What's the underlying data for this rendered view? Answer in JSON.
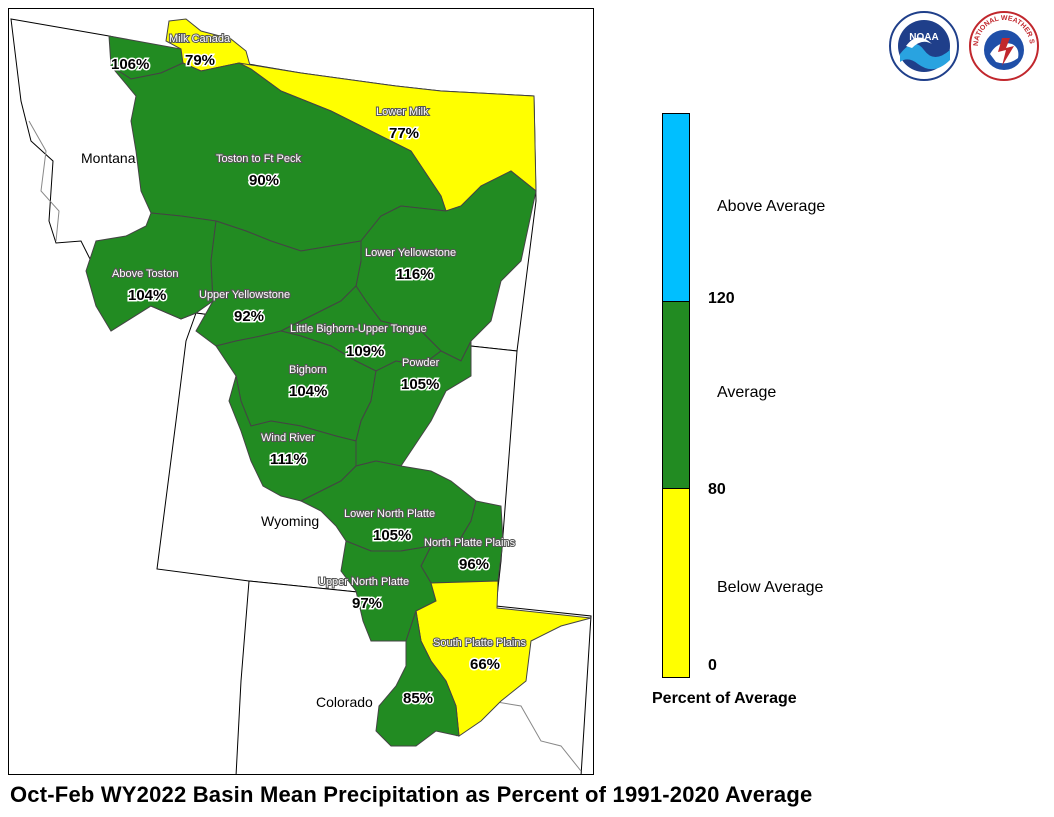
{
  "title": "Oct-Feb WY2022 Basin Mean Precipitation as Percent of 1991-2020 Average",
  "colors": {
    "below": "#ffff00",
    "average": "#228b22",
    "above": "#00bfff",
    "border": "#000000"
  },
  "states": [
    "Montana",
    "Wyoming",
    "Colorado"
  ],
  "basins": [
    {
      "name": "",
      "pct": "106%",
      "category": "average"
    },
    {
      "name": "Milk Canada",
      "pct": "79%",
      "category": "below"
    },
    {
      "name": "Lower Milk",
      "pct": "77%",
      "category": "below"
    },
    {
      "name": "Toston to Ft Peck",
      "pct": "90%",
      "category": "average"
    },
    {
      "name": "Above Toston",
      "pct": "104%",
      "category": "average"
    },
    {
      "name": "Lower Yellowstone",
      "pct": "116%",
      "category": "average"
    },
    {
      "name": "Upper Yellowstone",
      "pct": "92%",
      "category": "average"
    },
    {
      "name": "Little Bighorn-Upper Tongue",
      "pct": "109%",
      "category": "average"
    },
    {
      "name": "Bighorn",
      "pct": "104%",
      "category": "average"
    },
    {
      "name": "Powder",
      "pct": "105%",
      "category": "average"
    },
    {
      "name": "Wind River",
      "pct": "111%",
      "category": "average"
    },
    {
      "name": "Lower North Platte",
      "pct": "105%",
      "category": "average"
    },
    {
      "name": "North Platte Plains",
      "pct": "96%",
      "category": "average"
    },
    {
      "name": "Upper North Platte",
      "pct": "97%",
      "category": "average"
    },
    {
      "name": "South Platte Plains",
      "pct": "66%",
      "category": "below"
    },
    {
      "name": "",
      "pct": "85%",
      "category": "average"
    }
  ],
  "legend": {
    "title": "Percent of Average",
    "ticks": [
      "120",
      "80",
      "0"
    ],
    "categories": [
      "Above Average",
      "Average",
      "Below Average"
    ]
  },
  "logos": [
    {
      "icon": "noaa-logo",
      "text": "NOAA"
    },
    {
      "icon": "nws-logo",
      "text": "NATIONAL WEATHER SERVICE"
    }
  ]
}
